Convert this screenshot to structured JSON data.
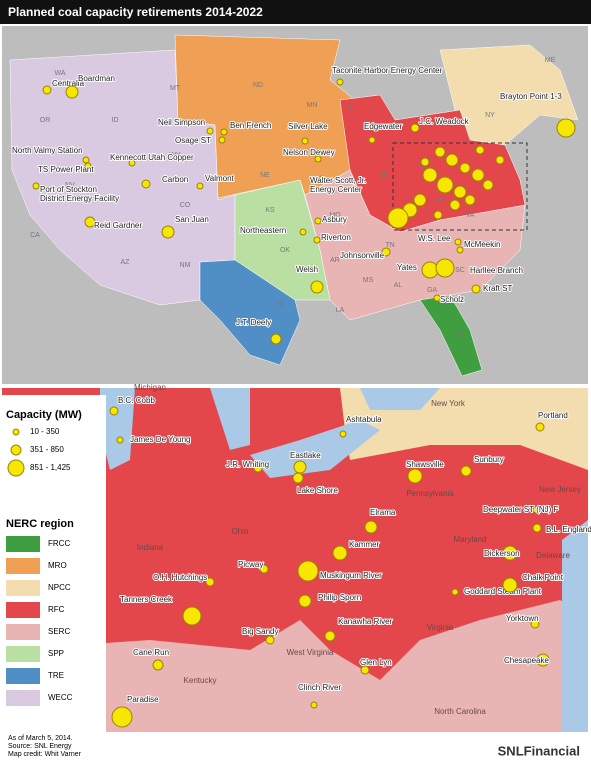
{
  "header": {
    "title": "Planned coal capacity retirements 2014-2022"
  },
  "top_map": {
    "state_labels": [
      "WA",
      "OR",
      "CA",
      "NV",
      "ID",
      "MT",
      "WY",
      "UT",
      "CO",
      "AZ",
      "NM",
      "ND",
      "SD",
      "NE",
      "KS",
      "OK",
      "TX",
      "MN",
      "IA",
      "MO",
      "AR",
      "LA",
      "WI",
      "IL",
      "MS",
      "AL",
      "GA",
      "FL",
      "TN",
      "KY",
      "IN",
      "OH",
      "MI",
      "WV",
      "VA",
      "NC",
      "SC",
      "PA",
      "NY",
      "ME"
    ],
    "plants": [
      "Centralia",
      "Boardman",
      "Taconite Harbor Energy Center",
      "Brayton Point 1-3",
      "Neil Simpson",
      "Ben French",
      "Osage ST",
      "Silver Lake",
      "Edgewater",
      "J.C. Weadock",
      "Nelson Dewey",
      "North Valmy Station",
      "TS Power Plant",
      "Kennecott Utah Copper",
      "Carbon",
      "Valmont",
      "Port of Stockton District Energy Facility",
      "Walter Scott, Jr. Energy Center",
      "Reid Gardner",
      "San Juan",
      "Northeastern",
      "Asbury",
      "Riverton",
      "Johnsonville",
      "W.S. Lee",
      "McMeekin",
      "Welsh",
      "Yates",
      "Harllee Branch",
      "Kraft ST",
      "Scholz",
      "J.T. Deely"
    ]
  },
  "bottom_map": {
    "region_labels": [
      "Michigan",
      "New York",
      "Pennsylvania",
      "Ohio",
      "Indiana",
      "Kentucky",
      "Virginia",
      "West Virginia",
      "Maryland",
      "Delaware",
      "New Jersey",
      "North Carolina"
    ],
    "plants": [
      "B.C. Cobb",
      "James De Young",
      "J.R. Whiting",
      "Eastlake",
      "Ashtabula",
      "Lake Shore",
      "Shawsville",
      "Sunbury",
      "Portland",
      "Deepwater ST (NJ) F",
      "Elrama",
      "B.L. England",
      "Kammer",
      "Dickerson",
      "Picway",
      "O.H. Hutchings",
      "Muskingum River",
      "Goddard Steam Plant",
      "Chalk Point",
      "Philip Sporn",
      "Tanners Creek",
      "Big Sandy",
      "Kanawha River",
      "Yorktown",
      "Cane Run",
      "Glen Lyn",
      "Chesapeake",
      "Clinch River",
      "Paradise"
    ]
  },
  "legend": {
    "capacity": {
      "title": "Capacity (MW)",
      "items": [
        "10 - 350",
        "351 - 850",
        "851 - 1,425"
      ],
      "color": "#f7e600"
    },
    "nerc": {
      "title": "NERC region",
      "items": [
        {
          "name": "FRCC",
          "color": "#3f9e3f"
        },
        {
          "name": "MRO",
          "color": "#f0a055"
        },
        {
          "name": "NPCC",
          "color": "#f3dcae"
        },
        {
          "name": "RFC",
          "color": "#e4474b"
        },
        {
          "name": "SERC",
          "color": "#e8b4b4"
        },
        {
          "name": "SPP",
          "color": "#b9e0a2"
        },
        {
          "name": "TRE",
          "color": "#4f8fc6"
        },
        {
          "name": "WECC",
          "color": "#d9c9e1"
        }
      ]
    }
  },
  "footer": {
    "notes": [
      "As of March 5, 2014.",
      "Source: SNL Energy",
      "Map credit: Whit Varner"
    ],
    "logo": "SNLFinancial"
  }
}
